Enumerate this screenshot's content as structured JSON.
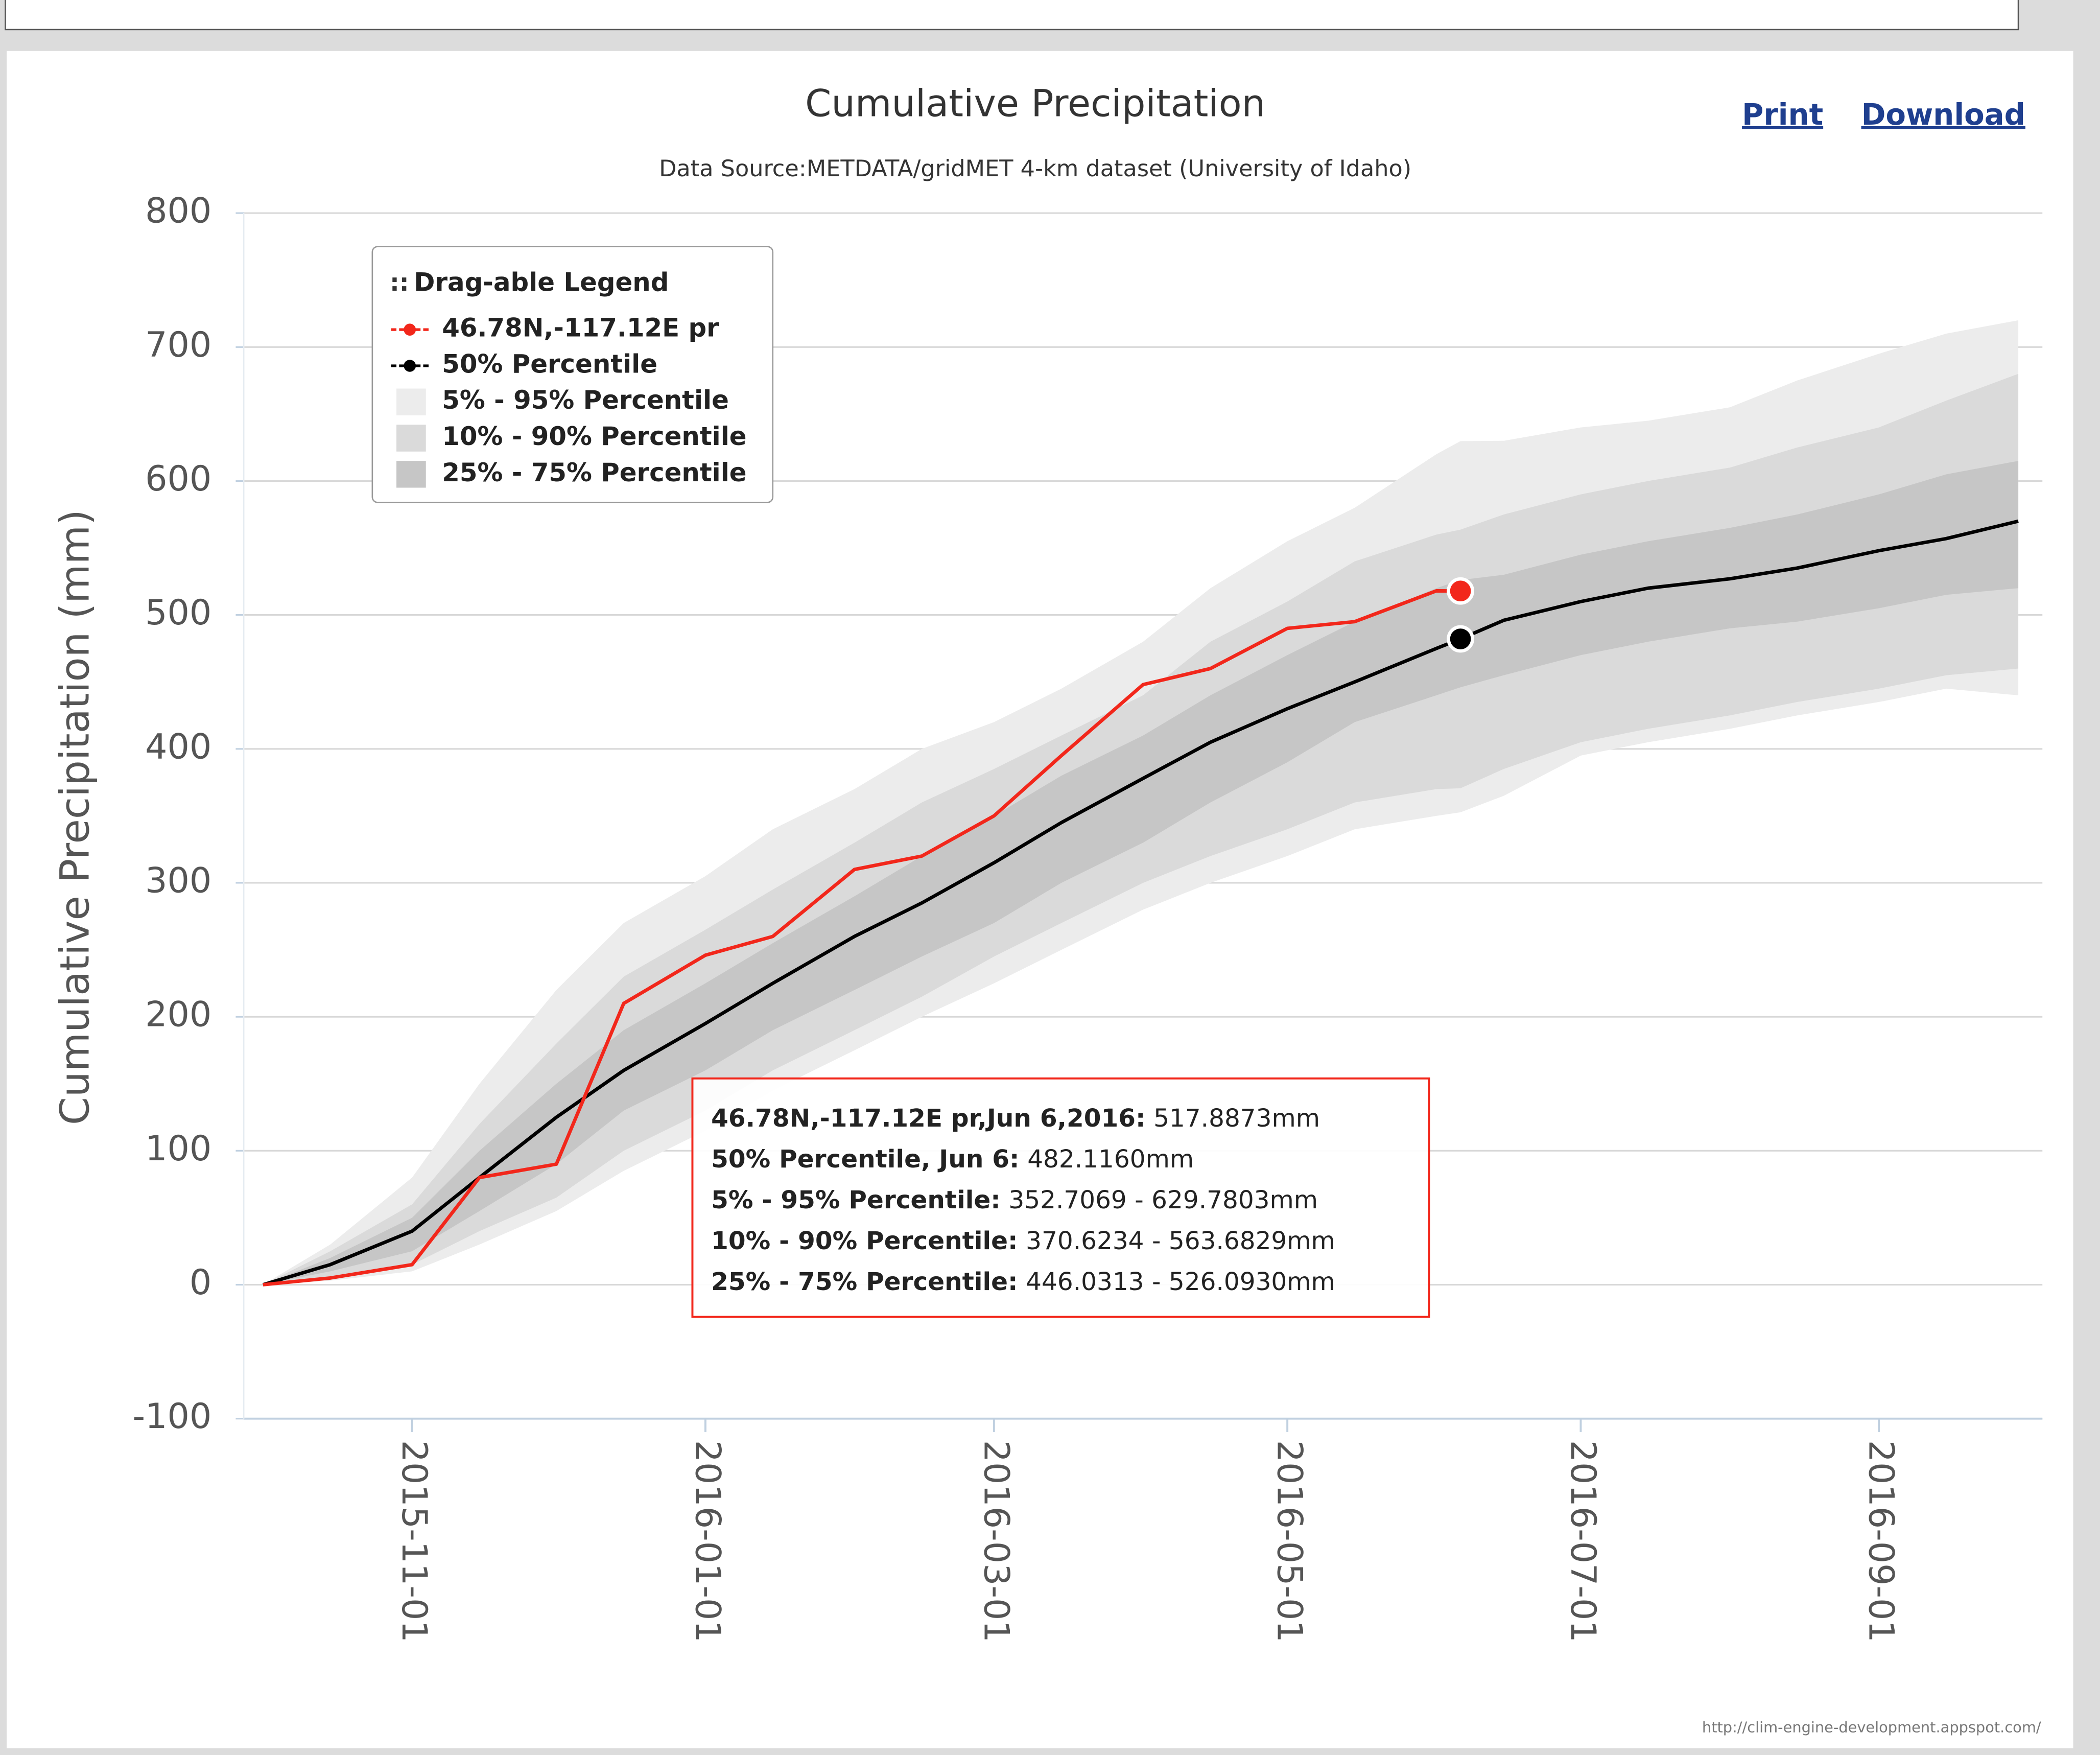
{
  "chart_data": {
    "type": "line",
    "title": "Cumulative Precipitation",
    "subtitle": "Data Source:METDATA/gridMET 4-km dataset (University of Idaho)",
    "y_label": "Cumulative Precipitation (mm)",
    "print_link": "Print",
    "download_link": "Download",
    "credit": "http://clim-engine-development.appspot.com/",
    "legend_title": "Drag-able Legend",
    "legend_position": "upper left",
    "grid": true,
    "x": [
      "2015-10-01",
      "2015-10-15",
      "2015-11-01",
      "2015-11-15",
      "2015-12-01",
      "2015-12-15",
      "2016-01-01",
      "2016-01-15",
      "2016-02-01",
      "2016-02-15",
      "2016-03-01",
      "2016-03-15",
      "2016-04-01",
      "2016-04-15",
      "2016-05-01",
      "2016-05-15",
      "2016-06-01",
      "2016-06-06",
      "2016-06-15",
      "2016-07-01",
      "2016-07-15",
      "2016-08-01",
      "2016-08-15",
      "2016-09-01",
      "2016-09-15",
      "2016-09-30"
    ],
    "xlim": [
      "2015-09-27",
      "2016-10-05"
    ],
    "xticks": [
      "2015-11-01",
      "2016-01-01",
      "2016-03-01",
      "2016-05-01",
      "2016-07-01",
      "2016-09-01"
    ],
    "ylim": [
      -100,
      800
    ],
    "yticks": [
      -100,
      0,
      100,
      200,
      300,
      400,
      500,
      600,
      700,
      800
    ],
    "series": [
      {
        "name": "46.78N,-117.12E pr",
        "color": "#f2271b",
        "values": [
          0,
          5,
          15,
          80,
          90,
          210,
          246,
          260,
          310,
          320,
          350,
          395,
          448,
          460,
          490,
          495,
          518,
          517.8873,
          null,
          null,
          null,
          null,
          null,
          null,
          null,
          null
        ]
      },
      {
        "name": "50% Percentile",
        "color": "#000000",
        "values": [
          0,
          15,
          40,
          80,
          125,
          160,
          195,
          225,
          260,
          285,
          315,
          345,
          378,
          405,
          430,
          450,
          475,
          482.116,
          496,
          510,
          520,
          527,
          535,
          548,
          557,
          570
        ]
      }
    ],
    "bands": [
      {
        "name": "5% - 95% Percentile",
        "color": "#ececec",
        "low": [
          0,
          3,
          10,
          30,
          55,
          85,
          115,
          145,
          175,
          200,
          225,
          250,
          280,
          300,
          320,
          340,
          350,
          352.7069,
          365,
          395,
          405,
          415,
          425,
          435,
          445,
          440
        ],
        "high": [
          0,
          30,
          80,
          150,
          220,
          270,
          305,
          340,
          370,
          400,
          420,
          445,
          480,
          520,
          555,
          580,
          620,
          629.7803,
          630,
          640,
          645,
          655,
          675,
          695,
          710,
          720
        ]
      },
      {
        "name": "10% - 90% Percentile",
        "color": "#dadada",
        "low": [
          0,
          5,
          15,
          40,
          65,
          100,
          130,
          160,
          190,
          215,
          245,
          270,
          300,
          320,
          340,
          360,
          370,
          370.6234,
          385,
          405,
          415,
          425,
          435,
          445,
          455,
          460
        ],
        "high": [
          0,
          25,
          60,
          120,
          180,
          230,
          265,
          295,
          330,
          360,
          385,
          410,
          440,
          480,
          510,
          540,
          560,
          563.6829,
          575,
          590,
          600,
          610,
          625,
          640,
          660,
          680
        ]
      },
      {
        "name": "25% - 75% Percentile",
        "color": "#c6c6c6",
        "low": [
          0,
          10,
          25,
          55,
          90,
          130,
          160,
          190,
          220,
          245,
          270,
          300,
          330,
          360,
          390,
          420,
          440,
          446.0313,
          455,
          470,
          480,
          490,
          495,
          505,
          515,
          520
        ],
        "high": [
          0,
          20,
          50,
          100,
          150,
          190,
          225,
          255,
          290,
          320,
          350,
          380,
          410,
          440,
          470,
          495,
          520,
          526.093,
          530,
          545,
          555,
          565,
          575,
          590,
          605,
          615
        ]
      }
    ],
    "tooltip": [
      {
        "label": "46.78N,-117.12E pr,Jun 6,2016:",
        "text": "517.8873mm"
      },
      {
        "label": "50% Percentile, Jun 6:",
        "text": "482.1160mm"
      },
      {
        "label": "5% - 95% Percentile:",
        "text": "352.7069 - 629.7803mm"
      },
      {
        "label": "10% - 90% Percentile:",
        "text": "370.6234 - 563.6829mm"
      },
      {
        "label": "25% - 75% Percentile:",
        "text": "446.0313 - 526.0930mm"
      }
    ]
  }
}
